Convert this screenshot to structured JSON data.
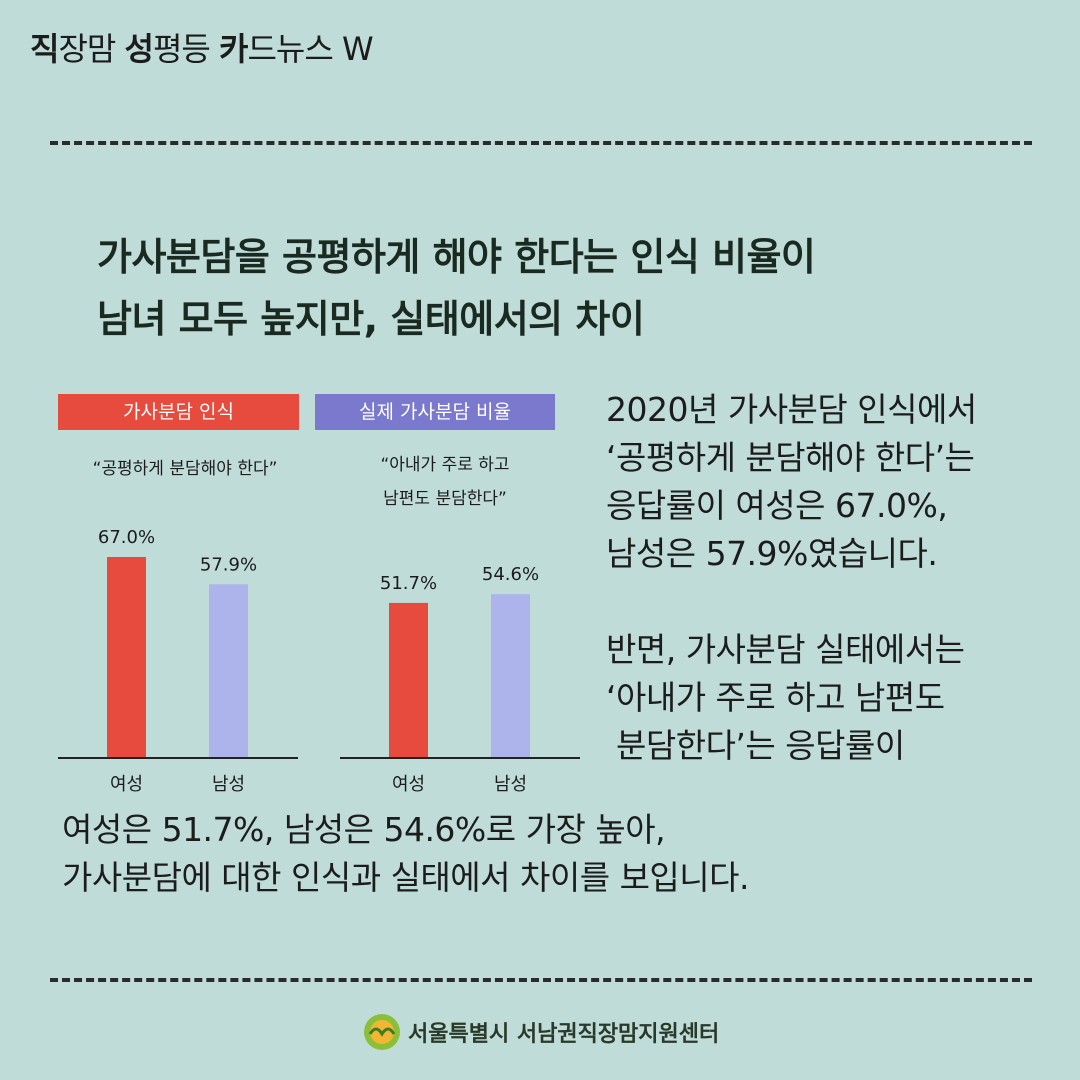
{
  "brand": {
    "parts": [
      {
        "bold": "직",
        "rest": "장맘 "
      },
      {
        "bold": "성",
        "rest": "평등 "
      },
      {
        "bold": "카",
        "rest": "드뉴스 W"
      }
    ]
  },
  "headline": {
    "line1": "가사분담을 공평하게 해야 한다는 인식 비율이",
    "line2": "남녀 모두 높지만, 실태에서의 차이"
  },
  "legend": {
    "left": "가사분담 인식",
    "right": "실제 가사분담 비율"
  },
  "quotes": {
    "left": "“공평하게 분담해야 한다”",
    "right_line1": "“아내가 주로 하고",
    "right_line2": "남편도 분담한다”"
  },
  "colors": {
    "female": "#e64b3d",
    "male": "#adb4ec",
    "legend_left": "#e64b3d",
    "legend_right": "#7b79cd",
    "background": "#bfdcd9"
  },
  "chart_data": [
    {
      "type": "bar",
      "title": "가사분담 인식",
      "subtitle": "“공평하게 분담해야 한다”",
      "categories": [
        "여성",
        "남성"
      ],
      "values": [
        67.0,
        57.9
      ],
      "labels": [
        "67.0%",
        "57.9%"
      ],
      "ylim": [
        0,
        100
      ]
    },
    {
      "type": "bar",
      "title": "실제 가사분담 비율",
      "subtitle": "“아내가 주로 하고 남편도 분담한다”",
      "categories": [
        "여성",
        "남성"
      ],
      "values": [
        51.7,
        54.6
      ],
      "labels": [
        "51.7%",
        "54.6%"
      ],
      "ylim": [
        0,
        100
      ]
    }
  ],
  "side_text": [
    "2020년 가사분담 인식에서",
    "‘공평하게 분담해야 한다’는",
    "응답률이 여성은 67.0%,",
    "남성은 57.9%였습니다.",
    "",
    "반면, 가사분담 실태에서는",
    "‘아내가 주로 하고 남편도",
    " 분담한다’는 응답률이"
  ],
  "bottom_text": [
    "여성은 51.7%, 남성은 54.6%로 가장 높아,",
    "가사분담에 대한 인식과 실태에서 차이를 보입니다."
  ],
  "footer": {
    "org": "서울특별시 서남권직장맘지원센터",
    "logo_icon": "center-logo-icon"
  }
}
